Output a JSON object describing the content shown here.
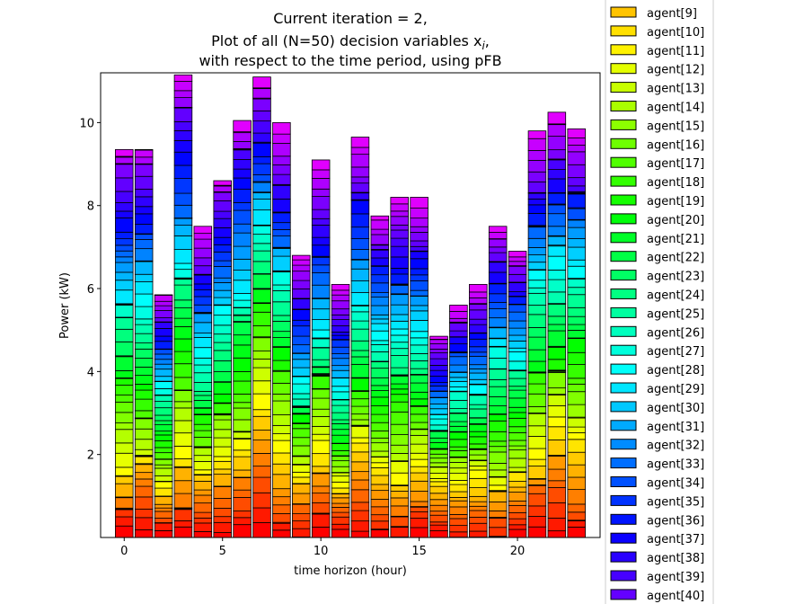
{
  "chart_data": {
    "type": "bar",
    "stacked": true,
    "title_lines": [
      "Current iteration = 2,",
      "Plot of all (N=50) decision variables x",
      "with respect to the time period, using pFB"
    ],
    "title_subscript": "i",
    "title_after_subscript": ",",
    "xlabel": "time horizon (hour)",
    "ylabel": "Power (kW)",
    "xlim": [
      -1.2,
      24.2
    ],
    "ylim": [
      0,
      11.2
    ],
    "xticks": [
      0,
      5,
      10,
      15,
      20
    ],
    "yticks": [
      2,
      4,
      6,
      8,
      10
    ],
    "categories": [
      0,
      1,
      2,
      3,
      4,
      5,
      6,
      7,
      8,
      9,
      10,
      11,
      12,
      13,
      14,
      15,
      16,
      17,
      18,
      19,
      20,
      21,
      22,
      23
    ],
    "totals": [
      9.35,
      9.35,
      5.85,
      11.15,
      7.5,
      8.6,
      10.05,
      11.1,
      10.0,
      6.8,
      9.1,
      6.1,
      9.65,
      7.75,
      8.2,
      8.2,
      4.85,
      5.6,
      6.1,
      7.5,
      6.9,
      9.8,
      10.25,
      9.85
    ],
    "legend": {
      "placement": "right, outside the axes",
      "entries": [
        "agent[9]",
        "agent[10]",
        "agent[11]",
        "agent[12]",
        "agent[13]",
        "agent[14]",
        "agent[15]",
        "agent[16]",
        "agent[17]",
        "agent[18]",
        "agent[19]",
        "agent[20]",
        "agent[21]",
        "agent[22]",
        "agent[23]",
        "agent[24]",
        "agent[25]",
        "agent[26]",
        "agent[27]",
        "agent[28]",
        "agent[29]",
        "agent[30]",
        "agent[31]",
        "agent[32]",
        "agent[33]",
        "agent[34]",
        "agent[35]",
        "agent[36]",
        "agent[37]",
        "agent[38]",
        "agent[39]",
        "agent[40]"
      ],
      "colors": [
        "#ffc400",
        "#ffe000",
        "#fff200",
        "#e4ff00",
        "#c8ff00",
        "#aaff00",
        "#8cff00",
        "#6eff00",
        "#50ff00",
        "#32ff00",
        "#14ff00",
        "#00ff0a",
        "#00ff28",
        "#00ff46",
        "#00ff64",
        "#00ff82",
        "#00ffa0",
        "#00ffbe",
        "#00ffdc",
        "#00fffa",
        "#00e6ff",
        "#00c8ff",
        "#00aaff",
        "#008cff",
        "#006eff",
        "#0050ff",
        "#0032ff",
        "#0014ff",
        "#0a00ff",
        "#2800ff",
        "#4600ff",
        "#6400ff"
      ]
    },
    "grid": false
  }
}
